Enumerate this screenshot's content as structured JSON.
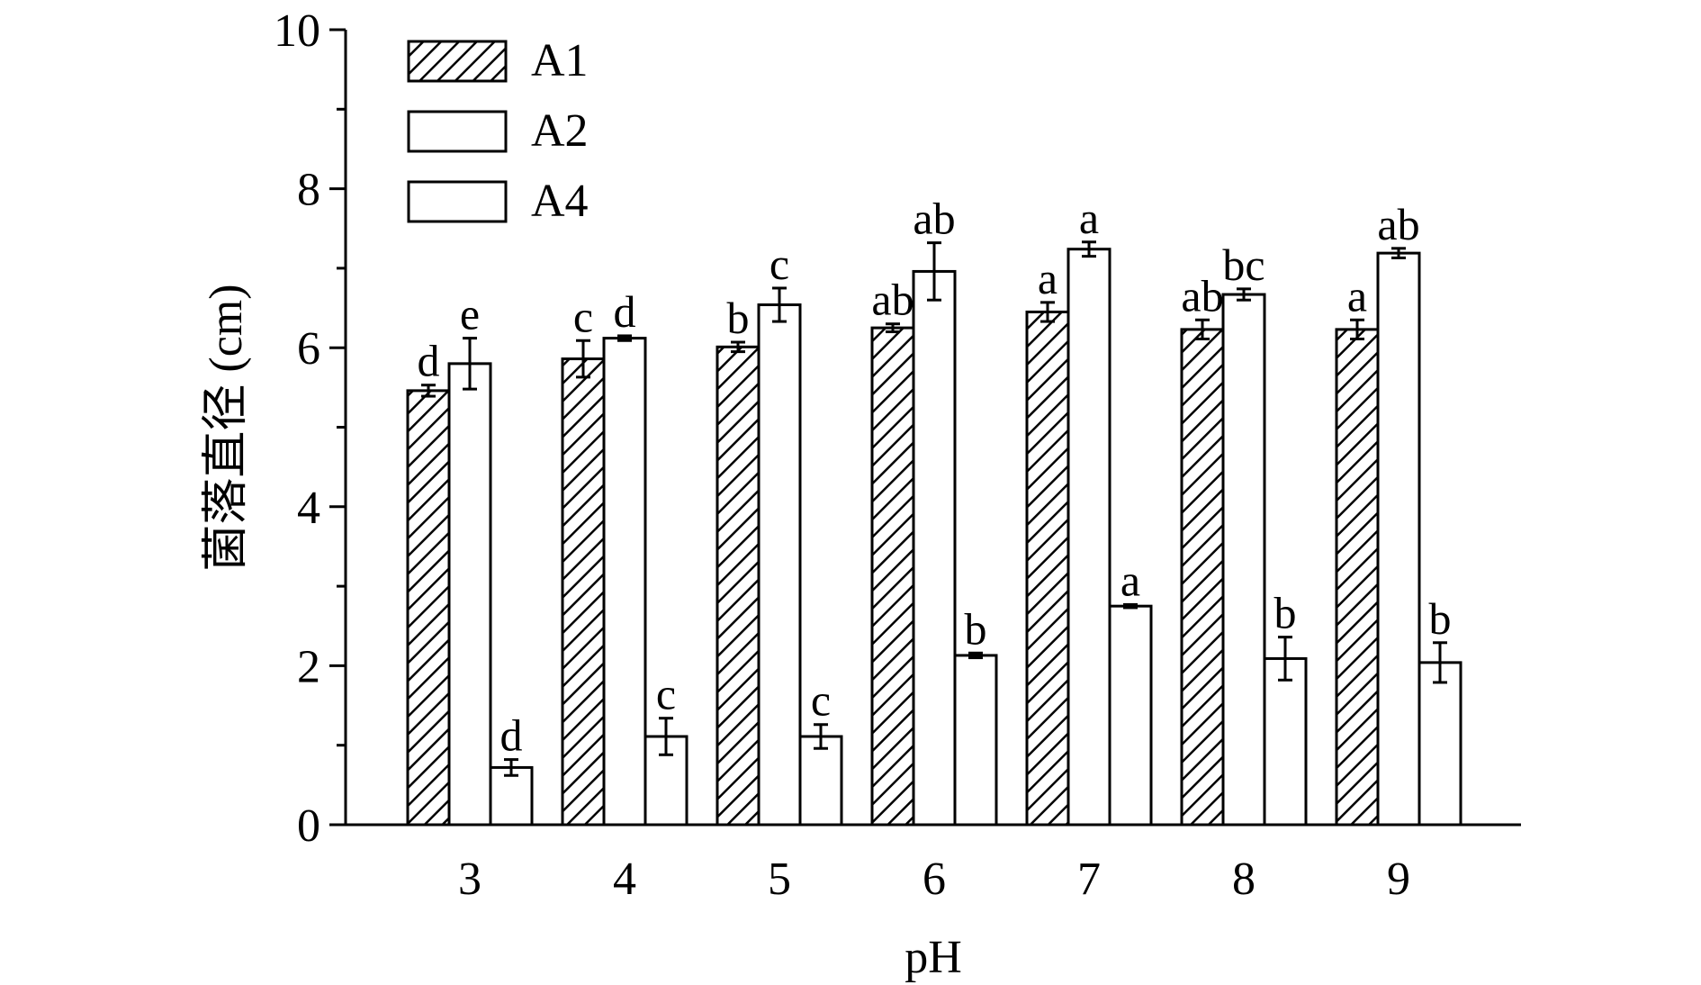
{
  "chart_data": {
    "type": "bar",
    "xlabel": "pH",
    "ylabel": "菌落直径 (cm)",
    "categories": [
      "3",
      "4",
      "5",
      "6",
      "7",
      "8",
      "9"
    ],
    "ylim": [
      0,
      10
    ],
    "yticks": [
      "0",
      "2",
      "4",
      "6",
      "8",
      "10"
    ],
    "grid": false,
    "legend_position": "top-left",
    "series": [
      {
        "name": "A1",
        "fill": "hatched",
        "values": [
          5.46,
          5.86,
          6.01,
          6.25,
          6.45,
          6.23,
          6.23
        ],
        "errors": [
          0.07,
          0.23,
          0.06,
          0.05,
          0.12,
          0.12,
          0.12
        ],
        "letters": [
          "d",
          "c",
          "b",
          "ab",
          "a",
          "ab",
          "a"
        ]
      },
      {
        "name": "A2",
        "fill": "white",
        "values": [
          5.8,
          6.12,
          6.54,
          6.96,
          7.24,
          6.67,
          7.19
        ],
        "errors": [
          0.32,
          0.03,
          0.21,
          0.36,
          0.09,
          0.07,
          0.06
        ],
        "letters": [
          "e",
          "d",
          "c",
          "ab",
          "a",
          "bc",
          "ab"
        ]
      },
      {
        "name": "A4",
        "fill": "white",
        "values": [
          0.72,
          1.11,
          1.11,
          2.13,
          2.75,
          2.09,
          2.04
        ],
        "errors": [
          0.1,
          0.23,
          0.15,
          0.03,
          0.02,
          0.27,
          0.25
        ],
        "letters": [
          "d",
          "c",
          "c",
          "b",
          "a",
          "b",
          "b"
        ]
      }
    ]
  }
}
